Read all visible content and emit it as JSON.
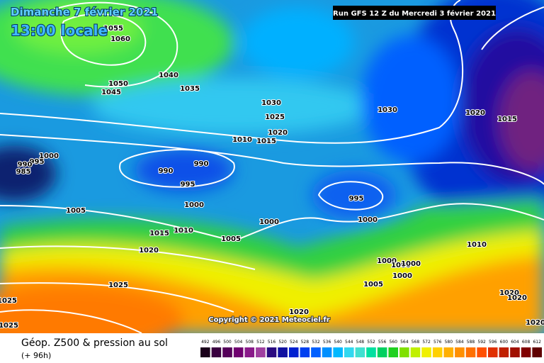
{
  "header": {
    "date": "Dimanche 7 février 2021",
    "time": "13:00 locale",
    "run": "Run GFS 12 Z du Mercredi 3 février 2021"
  },
  "copyright": "Copyright © 2021 Meteociel.fr",
  "footer": {
    "title": "Géop. Z500 & pression au sol",
    "lead": "(+ 96h)"
  },
  "isobar_labels": [
    "1055",
    "1060",
    "1050",
    "1045",
    "1040",
    "1035",
    "1030",
    "1025",
    "1020",
    "1015",
    "1010",
    "1030",
    "1020",
    "1015",
    "1000",
    "995",
    "990",
    "985",
    "990",
    "990",
    "995",
    "995",
    "1005",
    "1000",
    "1015",
    "1010",
    "1005",
    "1000",
    "1000",
    "1020",
    "1025",
    "1010",
    "1000",
    "1000",
    "1000",
    "1000",
    "1005",
    "1020",
    "1020",
    "1025",
    "1025",
    "1020",
    "1020"
  ],
  "legend": {
    "ticks": [
      492,
      496,
      500,
      504,
      508,
      512,
      516,
      520,
      524,
      528,
      532,
      536,
      540,
      544,
      548,
      552,
      556,
      560,
      564,
      568,
      572,
      576,
      580,
      584,
      588,
      592,
      596,
      600,
      604,
      608,
      612
    ],
    "colors": [
      "#1a001a",
      "#3a0040",
      "#55005a",
      "#700070",
      "#8a1a8a",
      "#a040a0",
      "#2a0a80",
      "#1010a0",
      "#0020d0",
      "#0040f0",
      "#0060ff",
      "#0090ff",
      "#00b8ff",
      "#30d8f0",
      "#40e0d0",
      "#00e0a0",
      "#00d060",
      "#20d020",
      "#80e000",
      "#c0f000",
      "#f0f000",
      "#ffd000",
      "#ffb000",
      "#ff9000",
      "#ff7000",
      "#ff5000",
      "#e03000",
      "#c02000",
      "#a01000",
      "#800000",
      "#600000"
    ]
  }
}
